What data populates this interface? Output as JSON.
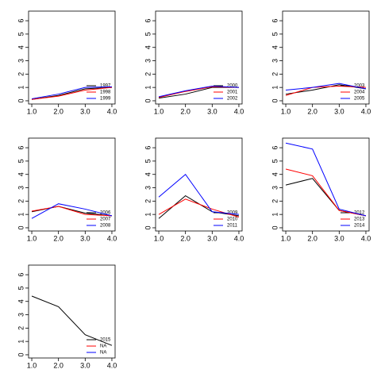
{
  "chart_data": [
    {
      "type": "line",
      "x": [
        1,
        2,
        3,
        4
      ],
      "xlim": [
        0.88,
        4.12
      ],
      "xticks": [
        {
          "value": 1,
          "label": "1.0"
        },
        {
          "value": 2,
          "label": "2.0"
        },
        {
          "value": 3,
          "label": "3.0"
        },
        {
          "value": 4,
          "label": "4.0"
        }
      ],
      "ylim": [
        -0.24,
        6.72
      ],
      "yticks": [
        0,
        1,
        2,
        3,
        4,
        5,
        6
      ],
      "legend": "bottom-right",
      "series": [
        {
          "name": "1997",
          "color": "#000000",
          "values": [
            0.1,
            0.4,
            0.9,
            1.0
          ]
        },
        {
          "name": "1998",
          "color": "#ff0000",
          "values": [
            0.1,
            0.35,
            0.8,
            1.0
          ]
        },
        {
          "name": "1999",
          "color": "#0000ff",
          "values": [
            0.15,
            0.5,
            1.0,
            1.05
          ]
        }
      ]
    },
    {
      "type": "line",
      "x": [
        1,
        2,
        3,
        4
      ],
      "xlim": [
        0.88,
        4.12
      ],
      "xticks": [
        {
          "value": 1,
          "label": "1.0"
        },
        {
          "value": 2,
          "label": "2.0"
        },
        {
          "value": 3,
          "label": "3.0"
        },
        {
          "value": 4,
          "label": "4.0"
        }
      ],
      "ylim": [
        -0.24,
        6.72
      ],
      "yticks": [
        0,
        1,
        2,
        3,
        4,
        5,
        6
      ],
      "legend": "bottom-right",
      "series": [
        {
          "name": "2000",
          "color": "#000000",
          "values": [
            0.2,
            0.5,
            1.0,
            1.0
          ]
        },
        {
          "name": "2001",
          "color": "#ff0000",
          "values": [
            0.25,
            0.7,
            1.05,
            1.0
          ]
        },
        {
          "name": "2002",
          "color": "#0000ff",
          "values": [
            0.3,
            0.75,
            1.1,
            1.0
          ]
        }
      ]
    },
    {
      "type": "line",
      "x": [
        1,
        2,
        3,
        4
      ],
      "xlim": [
        0.88,
        4.12
      ],
      "xticks": [
        {
          "value": 1,
          "label": "1.0"
        },
        {
          "value": 2,
          "label": "2.0"
        },
        {
          "value": 3,
          "label": "3.0"
        },
        {
          "value": 4,
          "label": "4.0"
        }
      ],
      "ylim": [
        -0.24,
        6.72
      ],
      "yticks": [
        0,
        1,
        2,
        3,
        4,
        5,
        6
      ],
      "legend": "bottom-right",
      "series": [
        {
          "name": "2003",
          "color": "#000000",
          "values": [
            0.5,
            0.8,
            1.2,
            0.9
          ]
        },
        {
          "name": "2004",
          "color": "#ff0000",
          "values": [
            0.4,
            1.0,
            1.1,
            1.0
          ]
        },
        {
          "name": "2005",
          "color": "#0000ff",
          "values": [
            0.8,
            1.0,
            1.3,
            0.9
          ]
        }
      ]
    },
    {
      "type": "line",
      "x": [
        1,
        2,
        3,
        4
      ],
      "xlim": [
        0.88,
        4.12
      ],
      "xticks": [
        {
          "value": 1,
          "label": "1.0"
        },
        {
          "value": 2,
          "label": "2.0"
        },
        {
          "value": 3,
          "label": "3.0"
        },
        {
          "value": 4,
          "label": "4.0"
        }
      ],
      "ylim": [
        -0.24,
        6.72
      ],
      "yticks": [
        0,
        1,
        2,
        3,
        4,
        5,
        6
      ],
      "legend": "bottom-right",
      "series": [
        {
          "name": "2006",
          "color": "#000000",
          "values": [
            1.2,
            1.6,
            1.1,
            0.9
          ]
        },
        {
          "name": "2007",
          "color": "#ff0000",
          "values": [
            1.25,
            1.6,
            1.0,
            0.9
          ]
        },
        {
          "name": "2008",
          "color": "#0000ff",
          "values": [
            0.7,
            1.8,
            1.4,
            0.9
          ]
        }
      ]
    },
    {
      "type": "line",
      "x": [
        1,
        2,
        3,
        4
      ],
      "xlim": [
        0.88,
        4.12
      ],
      "xticks": [
        {
          "value": 1,
          "label": "1.0"
        },
        {
          "value": 2,
          "label": "2.0"
        },
        {
          "value": 3,
          "label": "3.0"
        },
        {
          "value": 4,
          "label": "4.0"
        }
      ],
      "ylim": [
        -0.24,
        6.72
      ],
      "yticks": [
        0,
        1,
        2,
        3,
        4,
        5,
        6
      ],
      "legend": "bottom-right",
      "series": [
        {
          "name": "2009",
          "color": "#000000",
          "values": [
            0.7,
            2.4,
            1.2,
            0.9
          ]
        },
        {
          "name": "2010",
          "color": "#ff0000",
          "values": [
            1.0,
            2.15,
            1.4,
            0.8
          ]
        },
        {
          "name": "2011",
          "color": "#0000ff",
          "values": [
            2.3,
            4.0,
            1.2,
            1.0
          ]
        }
      ]
    },
    {
      "type": "line",
      "x": [
        1,
        2,
        3,
        4
      ],
      "xlim": [
        0.88,
        4.12
      ],
      "xticks": [
        {
          "value": 1,
          "label": "1.0"
        },
        {
          "value": 2,
          "label": "2.0"
        },
        {
          "value": 3,
          "label": "3.0"
        },
        {
          "value": 4,
          "label": "4.0"
        }
      ],
      "ylim": [
        -0.24,
        6.72
      ],
      "yticks": [
        0,
        1,
        2,
        3,
        4,
        5,
        6
      ],
      "legend": "bottom-right",
      "series": [
        {
          "name": "2012",
          "color": "#000000",
          "values": [
            3.2,
            3.7,
            1.3,
            0.9
          ]
        },
        {
          "name": "2013",
          "color": "#ff0000",
          "values": [
            4.4,
            3.9,
            1.3,
            0.9
          ]
        },
        {
          "name": "2014",
          "color": "#0000ff",
          "values": [
            6.35,
            5.9,
            1.4,
            0.9
          ]
        }
      ]
    },
    {
      "type": "line",
      "x": [
        1,
        2,
        3,
        4
      ],
      "xlim": [
        0.88,
        4.12
      ],
      "xticks": [
        {
          "value": 1,
          "label": "1.0"
        },
        {
          "value": 2,
          "label": "2.0"
        },
        {
          "value": 3,
          "label": "3.0"
        },
        {
          "value": 4,
          "label": "4.0"
        }
      ],
      "ylim": [
        -0.24,
        6.72
      ],
      "yticks": [
        0,
        1,
        2,
        3,
        4,
        5,
        6
      ],
      "legend": "bottom-right",
      "series": [
        {
          "name": "2015",
          "color": "#000000",
          "values": [
            4.4,
            3.6,
            1.5,
            0.7
          ]
        },
        {
          "name": "NA",
          "color": "#ff0000",
          "values": [
            null,
            null,
            null,
            null
          ]
        },
        {
          "name": "NA",
          "color": "#0000ff",
          "values": [
            null,
            null,
            null,
            null
          ]
        }
      ]
    }
  ]
}
